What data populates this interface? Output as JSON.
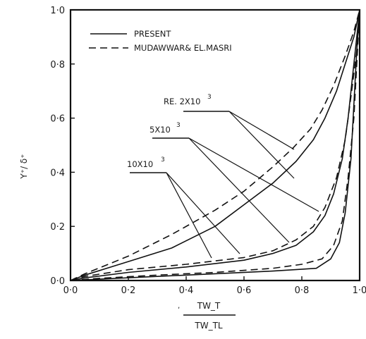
{
  "chart_data": {
    "type": "line",
    "xlabel_numerator": "TW_T",
    "xlabel_denominator": "TW_TL",
    "ylabel": "Y⁺/ δ⁺",
    "xlim": [
      0,
      1
    ],
    "ylim": [
      0,
      1
    ],
    "x_ticks": [
      "0·0",
      "0·2",
      "0·4",
      "0·6",
      "0·8",
      "1·0"
    ],
    "y_ticks": [
      "0·0",
      "0·2",
      "0·4",
      "0·6",
      "0·8",
      "1·0"
    ],
    "legend": {
      "placement": "top-left",
      "entries": [
        {
          "label": "PRESENT",
          "style": "solid"
        },
        {
          "label": "MUDAWWAR& EL.MASRI",
          "style": "dashed"
        }
      ]
    },
    "annotations": [
      {
        "label": "RE. 2X10³",
        "text": "RE. 2X10",
        "sup": "3"
      },
      {
        "label": "5X10³",
        "text": "5X10",
        "sup": "3"
      },
      {
        "label": "10X10³",
        "text": "10X10",
        "sup": "3"
      }
    ],
    "series": [
      {
        "re": "2X10³",
        "style": "solid",
        "points": [
          [
            0,
            0
          ],
          [
            0.05,
            0.02
          ],
          [
            0.2,
            0.07
          ],
          [
            0.35,
            0.12
          ],
          [
            0.5,
            0.2
          ],
          [
            0.6,
            0.28
          ],
          [
            0.7,
            0.36
          ],
          [
            0.78,
            0.44
          ],
          [
            0.84,
            0.52
          ],
          [
            0.88,
            0.6
          ],
          [
            0.92,
            0.7
          ],
          [
            0.95,
            0.8
          ],
          [
            0.98,
            0.9
          ],
          [
            1.0,
            1.0
          ]
        ]
      },
      {
        "re": "2X10³",
        "style": "dashed",
        "points": [
          [
            0,
            0
          ],
          [
            0.05,
            0.025
          ],
          [
            0.2,
            0.09
          ],
          [
            0.35,
            0.17
          ],
          [
            0.5,
            0.26
          ],
          [
            0.6,
            0.33
          ],
          [
            0.7,
            0.42
          ],
          [
            0.77,
            0.49
          ],
          [
            0.83,
            0.56
          ],
          [
            0.87,
            0.63
          ],
          [
            0.91,
            0.72
          ],
          [
            0.95,
            0.83
          ],
          [
            0.98,
            0.92
          ],
          [
            1.0,
            1.0
          ]
        ]
      },
      {
        "re": "5X10³",
        "style": "solid",
        "points": [
          [
            0,
            0
          ],
          [
            0.05,
            0.01
          ],
          [
            0.2,
            0.03
          ],
          [
            0.4,
            0.05
          ],
          [
            0.6,
            0.075
          ],
          [
            0.7,
            0.1
          ],
          [
            0.78,
            0.13
          ],
          [
            0.84,
            0.18
          ],
          [
            0.88,
            0.24
          ],
          [
            0.91,
            0.32
          ],
          [
            0.94,
            0.45
          ],
          [
            0.96,
            0.6
          ],
          [
            0.98,
            0.8
          ],
          [
            1.0,
            1.0
          ]
        ]
      },
      {
        "re": "5X10³",
        "style": "dashed",
        "points": [
          [
            0,
            0
          ],
          [
            0.05,
            0.015
          ],
          [
            0.2,
            0.04
          ],
          [
            0.4,
            0.06
          ],
          [
            0.6,
            0.085
          ],
          [
            0.7,
            0.11
          ],
          [
            0.78,
            0.15
          ],
          [
            0.84,
            0.2
          ],
          [
            0.88,
            0.27
          ],
          [
            0.92,
            0.38
          ],
          [
            0.95,
            0.52
          ],
          [
            0.97,
            0.68
          ],
          [
            0.99,
            0.85
          ],
          [
            1.0,
            1.0
          ]
        ]
      },
      {
        "re": "10X10³",
        "style": "solid",
        "points": [
          [
            0,
            0
          ],
          [
            0.1,
            0.005
          ],
          [
            0.3,
            0.015
          ],
          [
            0.5,
            0.025
          ],
          [
            0.7,
            0.035
          ],
          [
            0.85,
            0.045
          ],
          [
            0.9,
            0.08
          ],
          [
            0.93,
            0.14
          ],
          [
            0.95,
            0.25
          ],
          [
            0.97,
            0.45
          ],
          [
            0.98,
            0.65
          ],
          [
            0.99,
            0.85
          ],
          [
            1.0,
            1.0
          ]
        ]
      },
      {
        "re": "10X10³",
        "style": "dashed",
        "points": [
          [
            0,
            0
          ],
          [
            0.1,
            0.008
          ],
          [
            0.3,
            0.02
          ],
          [
            0.5,
            0.03
          ],
          [
            0.7,
            0.045
          ],
          [
            0.8,
            0.06
          ],
          [
            0.87,
            0.08
          ],
          [
            0.91,
            0.13
          ],
          [
            0.94,
            0.22
          ],
          [
            0.96,
            0.38
          ],
          [
            0.98,
            0.6
          ],
          [
            0.99,
            0.8
          ],
          [
            1.0,
            1.0
          ]
        ]
      }
    ]
  }
}
